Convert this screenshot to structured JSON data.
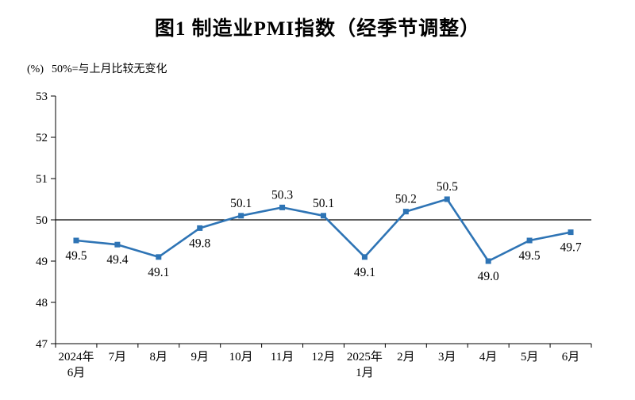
{
  "title": "图1 制造业PMI指数（经季节调整）",
  "unit_label": "(%)",
  "note": "50%=与上月比较无变化",
  "chart_data": {
    "type": "line",
    "title": "图1 制造业PMI指数（经季节调整）",
    "categories": [
      "2024年\n6月",
      "7月",
      "8月",
      "9月",
      "10月",
      "11月",
      "12月",
      "2025年\n1月",
      "2月",
      "3月",
      "4月",
      "5月",
      "6月"
    ],
    "values": [
      49.5,
      49.4,
      49.1,
      49.8,
      50.1,
      50.3,
      50.1,
      49.1,
      50.2,
      50.5,
      49.0,
      49.5,
      49.7
    ],
    "ylabel": "(%)",
    "ylim": [
      47,
      53
    ],
    "ytick_step": 1,
    "reference_line": 50,
    "grid": false,
    "legend": "none",
    "line_color": "#2E74B5",
    "marker": "square",
    "label_color": "#000000",
    "axis_color": "#000000"
  }
}
